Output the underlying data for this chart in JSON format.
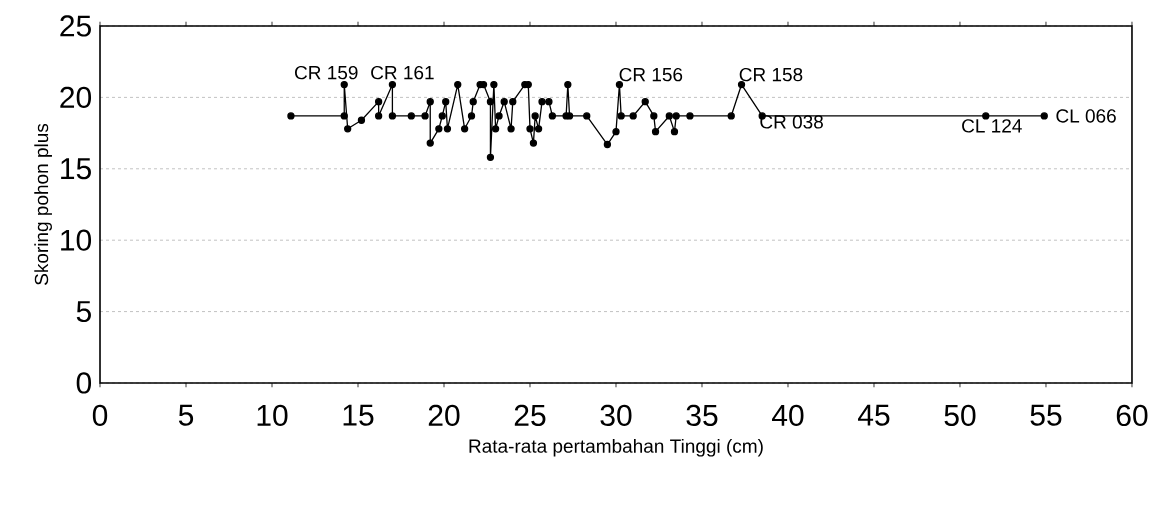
{
  "chart_data": {
    "type": "line",
    "xlabel": "Rata-rata pertambahan Tinggi (cm)",
    "ylabel": "Skoring pohon plus",
    "xlim": [
      0,
      60
    ],
    "xticks": [
      0,
      5,
      10,
      15,
      20,
      25,
      30,
      35,
      40,
      45,
      50,
      55,
      60
    ],
    "ylim": [
      0,
      25
    ],
    "yticks": [
      0,
      5,
      10,
      15,
      20,
      25
    ],
    "grid": "y",
    "marker": "circle",
    "line_style": "solid",
    "series": [
      {
        "color": "#000000",
        "x": [
          11.1,
          14.2,
          14.2,
          14.4,
          15.2,
          16.2,
          16.2,
          17.0,
          17.0,
          18.1,
          18.9,
          19.2,
          19.2,
          19.7,
          19.9,
          20.1,
          20.2,
          20.8,
          21.2,
          21.6,
          21.7,
          22.1,
          22.3,
          22.7,
          22.7,
          22.9,
          23.0,
          23.2,
          23.5,
          23.9,
          24.0,
          24.7,
          24.9,
          25.0,
          25.2,
          25.3,
          25.5,
          25.7,
          26.1,
          26.3,
          27.1,
          27.2,
          27.3,
          28.3,
          29.5,
          30.0,
          30.2,
          30.3,
          31.0,
          31.7,
          32.2,
          32.3,
          33.1,
          33.4,
          33.5,
          34.3,
          36.7,
          37.3,
          38.5,
          51.5,
          54.9
        ],
        "values": [
          18.7,
          18.7,
          20.9,
          17.8,
          18.4,
          19.7,
          18.7,
          20.9,
          18.7,
          18.7,
          18.7,
          19.7,
          16.8,
          17.8,
          18.7,
          19.7,
          17.8,
          20.9,
          17.8,
          18.7,
          19.7,
          20.9,
          20.9,
          19.7,
          15.8,
          20.9,
          17.8,
          18.7,
          19.7,
          17.8,
          19.7,
          20.9,
          20.9,
          17.8,
          16.8,
          18.7,
          17.8,
          19.7,
          19.7,
          18.7,
          18.7,
          20.9,
          18.7,
          18.7,
          16.7,
          17.6,
          20.9,
          18.7,
          18.7,
          19.7,
          18.7,
          17.6,
          18.7,
          17.6,
          18.7,
          18.7,
          18.7,
          20.9,
          18.7,
          18.7,
          18.7
        ]
      }
    ],
    "annotations": [
      {
        "text": "CR 159",
        "x": 14.2,
        "y": 20.9
      },
      {
        "text": "CR 161",
        "x": 17.0,
        "y": 20.9
      },
      {
        "text": "CR 156",
        "x": 30.2,
        "y": 20.9
      },
      {
        "text": "CR 158",
        "x": 37.3,
        "y": 20.9
      },
      {
        "text": "CR 038",
        "x": 38.5,
        "y": 18.7
      },
      {
        "text": "CL 124",
        "x": 51.5,
        "y": 18.7
      },
      {
        "text": "CL 066",
        "x": 54.9,
        "y": 18.7
      }
    ]
  }
}
